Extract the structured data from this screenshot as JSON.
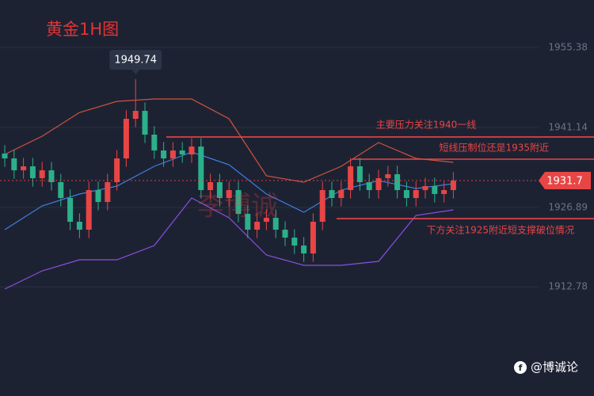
{
  "chart_data": {
    "type": "candlestick",
    "title": "黄金1H图",
    "watermark": "李博诚",
    "footer": "@博诚论",
    "up_color": "#e84545",
    "down_color": "#2bb08a",
    "grid": true,
    "ylim": [
      1893.34,
      1963.84
    ],
    "yticks": [
      1912.78,
      1926.89,
      1941.14,
      1955.38
    ],
    "open": [
      1936.5,
      1935.64,
      1933.52,
      1934.23,
      1932.12,
      1933.52,
      1931.41,
      1928.59,
      1924.36,
      1922.95,
      1930.0,
      1927.88,
      1931.41,
      1935.64,
      1942.69,
      1944.1,
      1939.87,
      1937.05,
      1935.64,
      1937.05,
      1936.34,
      1937.75,
      1930.0,
      1931.41,
      1928.59,
      1930.0,
      1925.77,
      1922.95,
      1924.36,
      1925.07,
      1922.95,
      1921.54,
      1920.13,
      1918.72,
      1924.36,
      1930.0,
      1928.59,
      1930.0,
      1934.23,
      1931.41,
      1930.0,
      1932.12,
      1932.82,
      1930.0,
      1928.59,
      1930.0,
      1930.71,
      1929.3,
      1930.0
    ],
    "high": [
      1938.0,
      1937.14,
      1935.73,
      1935.73,
      1935.02,
      1935.02,
      1932.91,
      1930.09,
      1925.86,
      1931.5,
      1931.5,
      1932.91,
      1937.14,
      1944.19,
      1949.74,
      1945.6,
      1941.37,
      1938.55,
      1938.55,
      1938.55,
      1939.25,
      1939.25,
      1932.91,
      1932.91,
      1931.5,
      1931.5,
      1927.27,
      1925.86,
      1926.57,
      1926.57,
      1924.45,
      1923.04,
      1921.63,
      1925.86,
      1931.5,
      1931.5,
      1931.5,
      1935.73,
      1935.73,
      1932.91,
      1933.62,
      1934.32,
      1934.32,
      1931.5,
      1931.5,
      1932.21,
      1932.21,
      1931.5,
      1933.2
    ],
    "low": [
      1934.14,
      1932.02,
      1932.02,
      1930.62,
      1930.62,
      1929.91,
      1927.09,
      1922.86,
      1921.45,
      1921.45,
      1926.38,
      1926.38,
      1929.91,
      1934.14,
      1941.19,
      1938.37,
      1935.55,
      1934.14,
      1934.14,
      1934.84,
      1934.84,
      1928.5,
      1928.5,
      1927.09,
      1927.09,
      1924.27,
      1921.45,
      1921.45,
      1922.86,
      1921.45,
      1920.04,
      1918.63,
      1917.22,
      1917.22,
      1922.86,
      1927.09,
      1927.09,
      1928.5,
      1929.91,
      1928.5,
      1928.5,
      1930.62,
      1928.5,
      1927.09,
      1927.09,
      1928.5,
      1927.8,
      1927.8,
      1928.5
    ],
    "close": [
      1935.64,
      1933.52,
      1934.23,
      1932.12,
      1933.52,
      1931.41,
      1928.59,
      1924.36,
      1922.95,
      1930.0,
      1927.88,
      1931.41,
      1935.64,
      1942.69,
      1944.1,
      1939.87,
      1937.05,
      1935.64,
      1937.05,
      1936.34,
      1937.75,
      1930.0,
      1931.41,
      1928.59,
      1930.0,
      1925.77,
      1922.95,
      1924.36,
      1925.07,
      1922.95,
      1921.54,
      1920.13,
      1918.72,
      1924.36,
      1930.0,
      1928.59,
      1930.0,
      1934.23,
      1931.41,
      1930.0,
      1932.12,
      1932.82,
      1930.0,
      1928.59,
      1930.0,
      1930.71,
      1929.3,
      1930.0,
      1931.7
    ],
    "bands": [
      {
        "color": "#d0533a",
        "x": [
          0,
          4,
          8,
          12,
          16,
          20,
          24,
          28,
          32,
          36,
          40,
          44,
          48
        ],
        "values": [
          1936.35,
          1939.59,
          1943.82,
          1945.79,
          1946.22,
          1946.22,
          1942.69,
          1932.54,
          1931.41,
          1934.23,
          1938.46,
          1935.64,
          1934.93
        ]
      },
      {
        "color": "#3d7fe0",
        "x": [
          0,
          4,
          8,
          12,
          16,
          20,
          24,
          28,
          32,
          36,
          40,
          44,
          48
        ],
        "values": [
          1922.95,
          1927.18,
          1929.3,
          1930.71,
          1934.23,
          1936.77,
          1934.51,
          1929.3,
          1926.05,
          1930.0,
          1931.69,
          1930.28,
          1931.13
        ]
      },
      {
        "color": "#8a4fe0",
        "x": [
          0,
          4,
          8,
          12,
          16,
          20,
          24,
          28,
          32,
          36,
          40,
          44,
          48
        ],
        "values": [
          1912.37,
          1915.62,
          1917.59,
          1917.59,
          1920.13,
          1928.59,
          1925.07,
          1918.44,
          1916.61,
          1916.61,
          1917.31,
          1925.49,
          1926.48
        ]
      }
    ],
    "annotations": [
      {
        "text": "主要压力关注1940一线",
        "value": 1939.45
      },
      {
        "text": "短线压制位还是1935附近",
        "value": 1935.5
      },
      {
        "text": "下方关注1925附近短支撑破位情况",
        "value": 1924.92
      }
    ]
  }
}
